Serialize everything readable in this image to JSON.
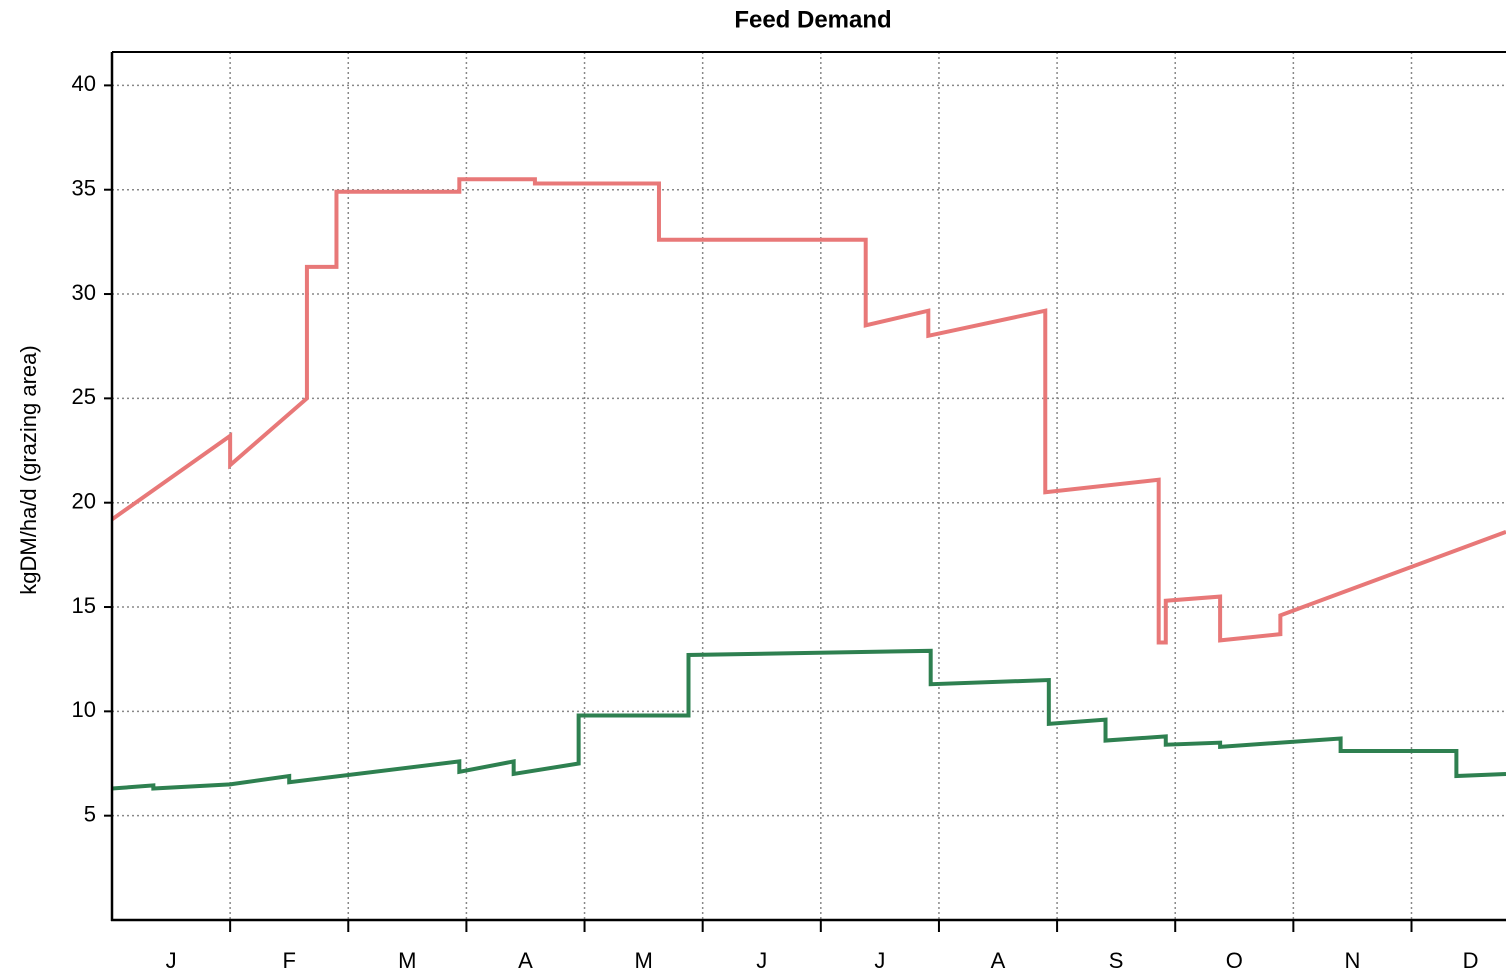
{
  "chart_data": {
    "type": "line",
    "title": "Feed Demand",
    "ylabel": "kgDM/ha/d (grazing area)",
    "categories": [
      "J",
      "F",
      "M",
      "A",
      "M",
      "J",
      "J",
      "A",
      "S",
      "O",
      "N",
      "D"
    ],
    "xlim": [
      0,
      11.8
    ],
    "xticks": [
      1,
      2,
      3,
      4,
      5,
      6,
      7,
      8,
      9,
      10,
      11
    ],
    "ylim": [
      0,
      41.6
    ],
    "yticks": [
      5,
      10,
      15,
      20,
      25,
      30,
      35,
      40
    ],
    "grid": true,
    "step": true,
    "series": [
      {
        "color": "#e87878",
        "x": [
          0,
          1.0,
          1.0,
          1.65,
          1.65,
          1.9,
          1.9,
          2.94,
          2.94,
          3.58,
          3.58,
          4.63,
          4.63,
          6.38,
          6.38,
          6.91,
          6.91,
          7.9,
          7.9,
          8.86,
          8.86,
          8.92,
          8.92,
          9.38,
          9.38,
          9.89,
          9.89,
          11.8
        ],
        "values": [
          19.2,
          23.2,
          21.8,
          25.0,
          31.3,
          31.3,
          34.9,
          34.9,
          35.5,
          35.5,
          35.3,
          35.3,
          32.6,
          32.6,
          28.5,
          29.2,
          28.0,
          29.2,
          20.5,
          21.1,
          13.3,
          13.3,
          15.3,
          15.5,
          13.4,
          13.7,
          14.6,
          18.6
        ]
      },
      {
        "color": "#2e8050",
        "x": [
          0,
          0.35,
          0.35,
          1.0,
          1.5,
          1.5,
          2.94,
          2.94,
          3.4,
          3.4,
          3.95,
          3.95,
          4.88,
          4.88,
          6.93,
          6.93,
          7.93,
          7.93,
          8.41,
          8.41,
          8.92,
          8.92,
          9.38,
          9.38,
          10.4,
          10.4,
          11.38,
          11.38,
          11.8
        ],
        "values": [
          6.3,
          6.45,
          6.3,
          6.5,
          6.9,
          6.6,
          7.6,
          7.1,
          7.6,
          7.0,
          7.5,
          9.8,
          9.8,
          12.7,
          12.9,
          11.3,
          11.5,
          9.4,
          9.6,
          8.6,
          8.8,
          8.4,
          8.5,
          8.3,
          8.7,
          8.1,
          8.1,
          6.9,
          7.0
        ]
      }
    ]
  }
}
